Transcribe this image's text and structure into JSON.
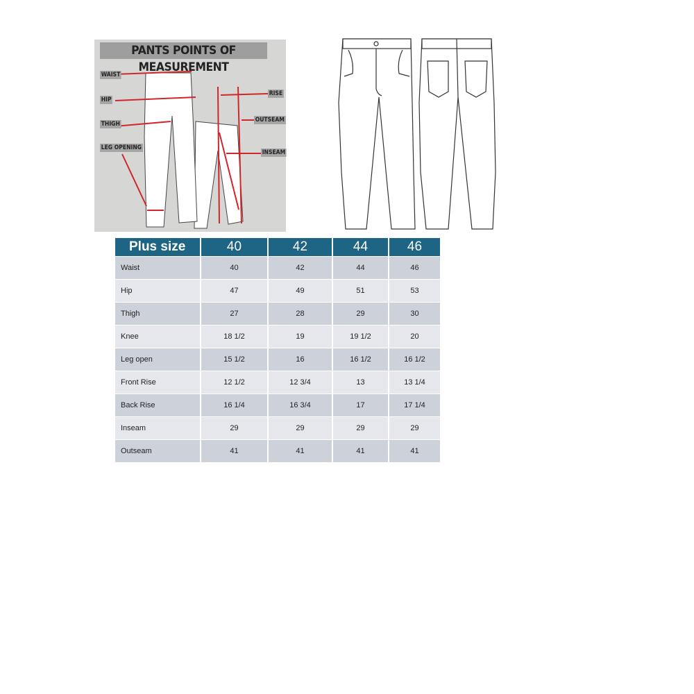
{
  "diagram": {
    "title": "PANTS POINTS OF MEASUREMENT",
    "labels": [
      "WAIST",
      "HIP",
      "THIGH",
      "LEG OPENING",
      "RISE",
      "OUTSEAM",
      "INSEAM"
    ],
    "arrow_color": "#d0262b"
  },
  "table": {
    "header_color": "#1d6485",
    "headers": [
      "Plus size",
      "40",
      "42",
      "44",
      "46"
    ],
    "rows": [
      [
        "Waist",
        "40",
        "42",
        "44",
        "46"
      ],
      [
        "Hip",
        "47",
        "49",
        "51",
        "53"
      ],
      [
        "Thigh",
        "27",
        "28",
        "29",
        "30"
      ],
      [
        "Knee",
        "18 1/2",
        "19",
        "19 1/2",
        "20"
      ],
      [
        "Leg open",
        "15 1/2",
        "16",
        "16 1/2",
        "16 1/2"
      ],
      [
        "Front Rise",
        "12 1/2",
        "12 3/4",
        "13",
        "13 1/4"
      ],
      [
        "Back Rise",
        "16 1/4",
        "16 3/4",
        "17",
        "17 1/4"
      ],
      [
        "Inseam",
        "29",
        "29",
        "29",
        "29"
      ],
      [
        "Outseam",
        "41",
        "41",
        "41",
        "41"
      ]
    ]
  }
}
